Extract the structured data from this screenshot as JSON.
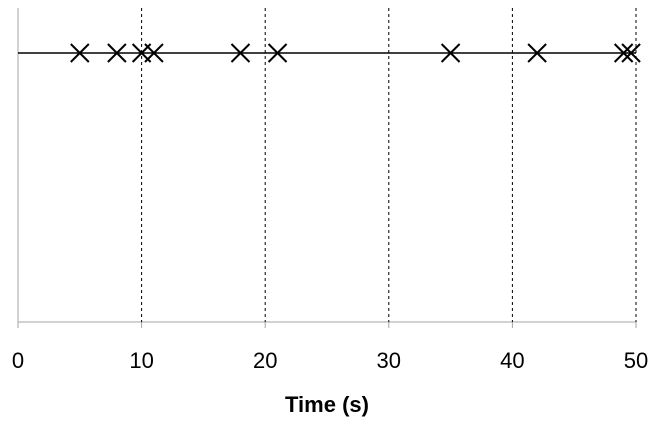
{
  "chart_data": {
    "type": "scatter",
    "xlabel": "Time (s)",
    "x": [
      5,
      8,
      10,
      11,
      18,
      21,
      35,
      42,
      49,
      49.6
    ],
    "color": "#000000",
    "xlim": [
      0,
      50
    ],
    "xticks": [
      0,
      10,
      20,
      30,
      40,
      50
    ],
    "grid": true
  }
}
